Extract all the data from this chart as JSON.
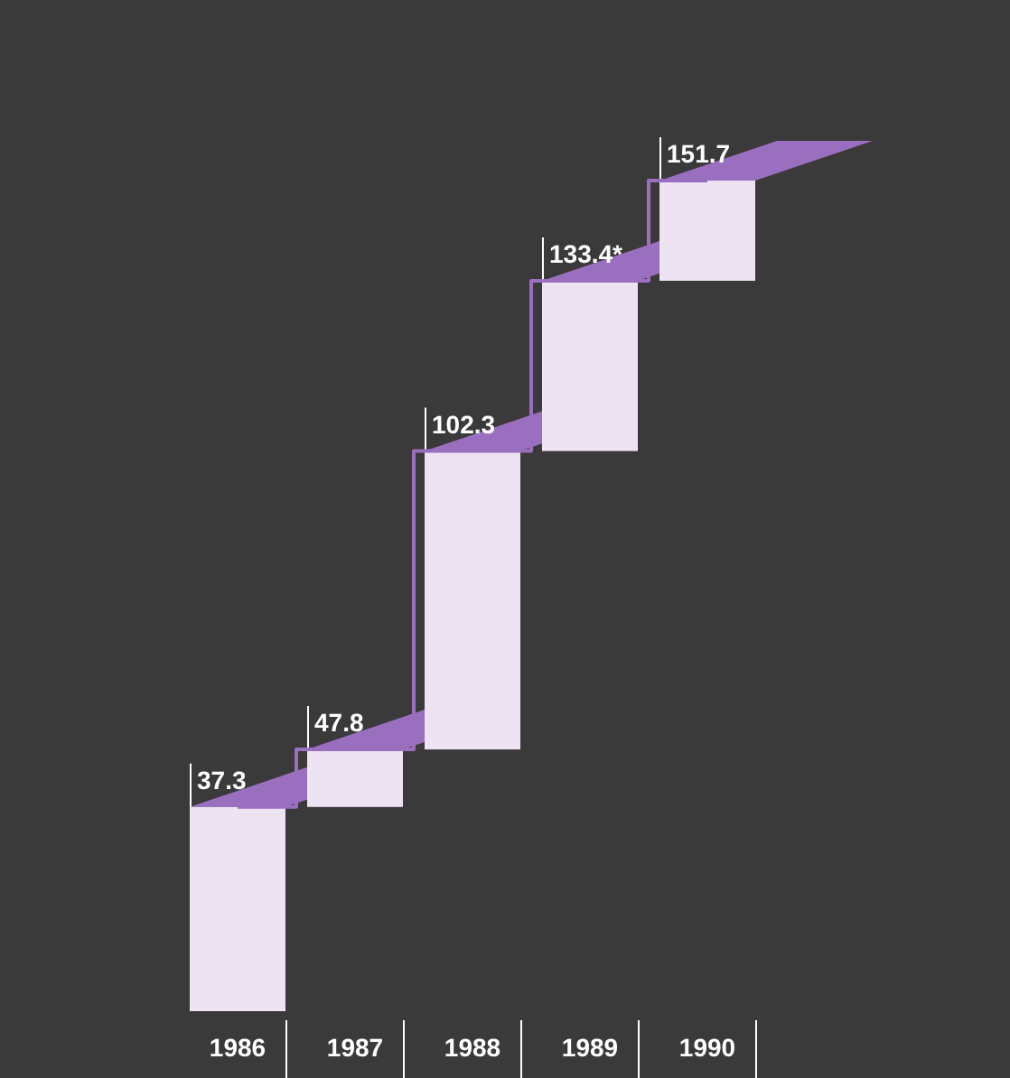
{
  "chart_data": {
    "type": "step",
    "categories": [
      "1986",
      "1987",
      "1988",
      "1989",
      "1990"
    ],
    "series": [
      {
        "color": "#9a6fbf",
        "values": [
          37.3,
          47.8,
          102.3,
          133.4,
          151.7
        ],
        "value_labels": [
          "37.3",
          "47.8",
          "102.3",
          "133.4*",
          "151.7"
        ]
      }
    ]
  }
}
